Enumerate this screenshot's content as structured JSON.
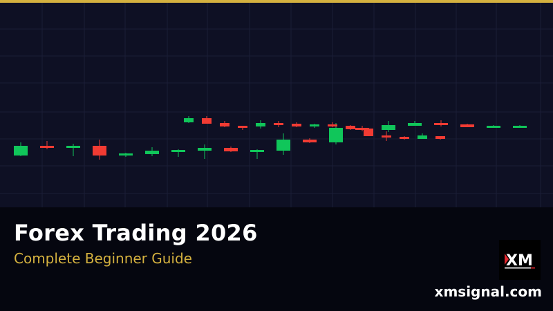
{
  "banner": {
    "title": "Forex Trading 2026",
    "subtitle": "Complete Beginner Guide",
    "website": "xmsignal.com",
    "logo_text": "XM"
  },
  "colors": {
    "accent_gold": "#d4b13f",
    "bullish": "#10c65a",
    "bearish": "#f23b33",
    "chart_background": "#0e1024",
    "grid": "#1b1e36",
    "panel_background": "#05060f"
  },
  "icons": {
    "logo": "xm-logo-icon"
  }
}
